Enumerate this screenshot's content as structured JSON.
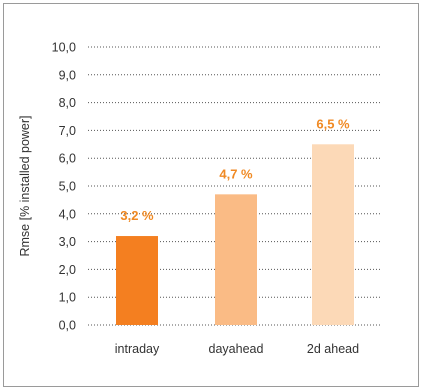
{
  "chart_data": {
    "type": "bar",
    "categories": [
      "intraday",
      "dayahead",
      "2d ahead"
    ],
    "values": [
      3.2,
      4.7,
      6.5
    ],
    "data_labels": [
      "3,2 %",
      "4,7 %",
      "6,5 %"
    ],
    "colors": [
      "#f47f20",
      "#fabb85",
      "#fcd9b7"
    ],
    "label_color": "#f08a24",
    "title": "",
    "xlabel": "",
    "ylabel": "Rmse [% installed power]",
    "ylim": [
      0,
      10
    ],
    "yticks": [
      "0,0",
      "1,0",
      "2,0",
      "3,0",
      "4,0",
      "5,0",
      "6,0",
      "7,0",
      "8,0",
      "9,0",
      "10,0"
    ],
    "grid": true,
    "legend": "none"
  }
}
